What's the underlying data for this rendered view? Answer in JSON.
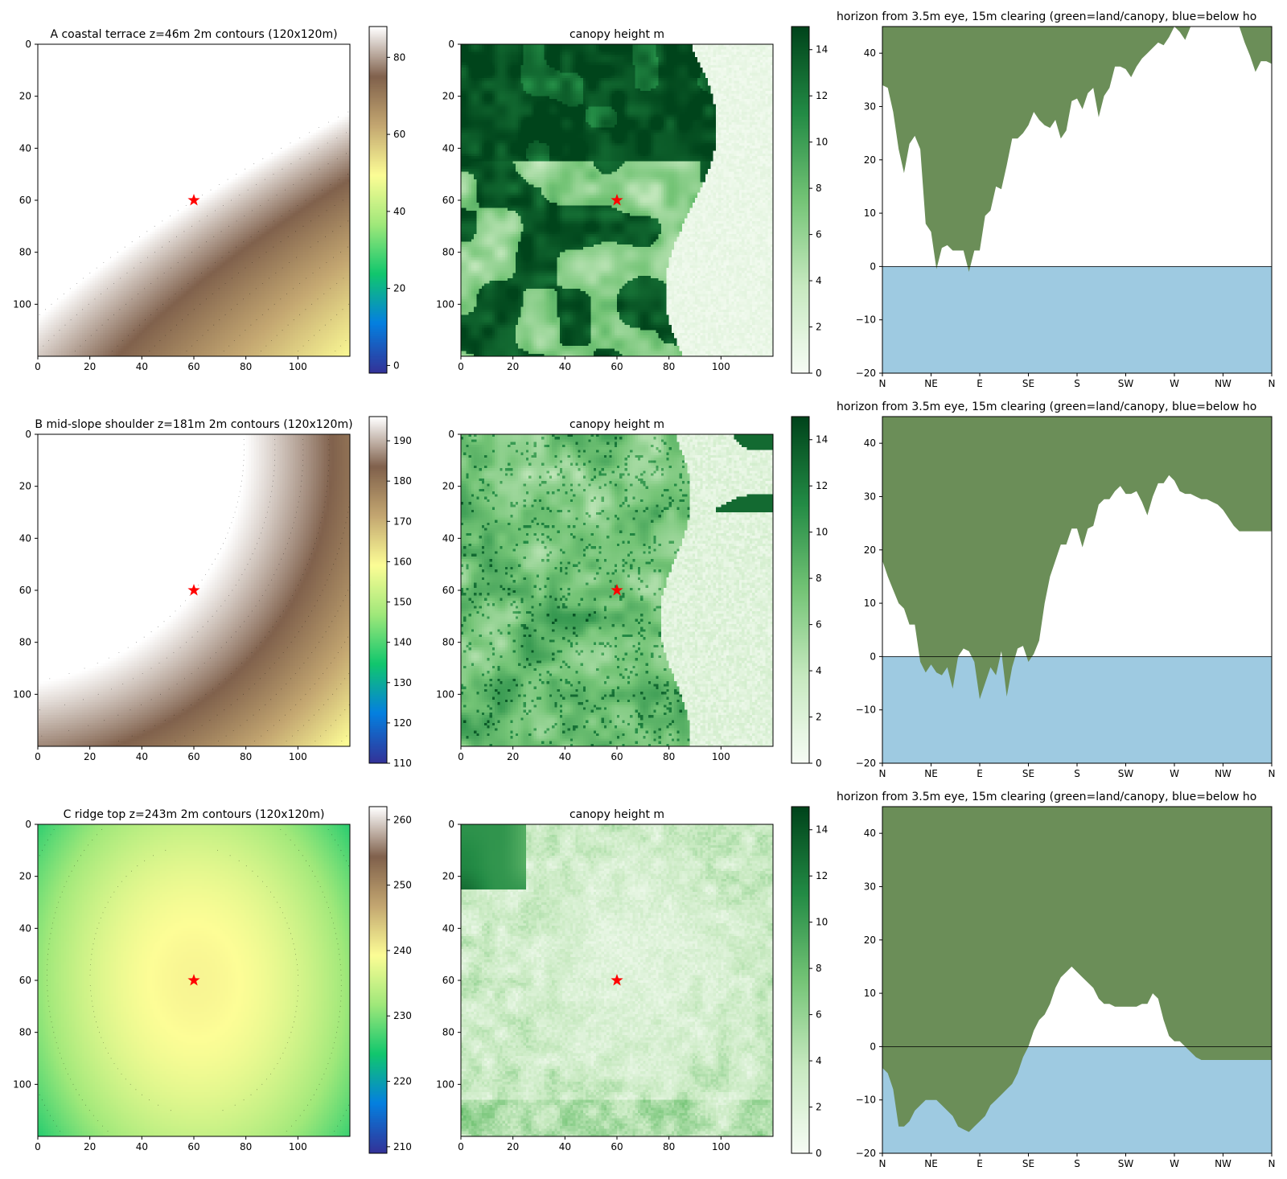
{
  "colors": {
    "land": "#6b8e58",
    "below": "#9ecae1",
    "star": "#ff0000",
    "terrain": [
      "#333399",
      "#0480e0",
      "#11c76d",
      "#a0e87a",
      "#fdfd96",
      "#c4a771",
      "#80614c",
      "#ffffff"
    ],
    "greens": [
      "#f7fcf5",
      "#c7e9c0",
      "#74c476",
      "#238b45",
      "#00441b"
    ]
  },
  "chart_data": [
    {
      "type": "heatmap",
      "row": 0,
      "panel": "elevation",
      "title": "A coastal terrace  z=46m  2m contours (120x120m)",
      "xticks": [
        "0",
        "20",
        "40",
        "60",
        "80",
        "100"
      ],
      "yticks": [
        "0",
        "20",
        "40",
        "60",
        "80",
        "100"
      ],
      "extent": [
        0,
        120
      ],
      "marker": {
        "x": 60,
        "y": 60
      },
      "colorbar": {
        "min": -2,
        "max": 88,
        "ticks": [
          "0",
          "20",
          "40",
          "60",
          "80"
        ]
      },
      "surface": {
        "a": 88,
        "b": -0.28,
        "c": -0.44,
        "d": 0,
        "e": 0.0014,
        "f": 0
      }
    },
    {
      "type": "heatmap",
      "row": 0,
      "panel": "canopy",
      "title": "canopy height m",
      "xticks": [
        "0",
        "20",
        "40",
        "60",
        "80",
        "100"
      ],
      "yticks": [
        "0",
        "20",
        "40",
        "60",
        "80",
        "100"
      ],
      "extent": [
        0,
        120
      ],
      "marker": {
        "x": 60,
        "y": 60
      },
      "colorbar": {
        "min": 0,
        "max": 15,
        "ticks": [
          "0",
          "2",
          "4",
          "6",
          "8",
          "10",
          "12",
          "14"
        ]
      },
      "canopy_style": "A"
    },
    {
      "type": "area",
      "row": 0,
      "panel": "horizon",
      "title": "horizon from 3.5m eye, 15m clearing (green=land/canopy, blue=below ho",
      "ylim": [
        -20,
        45
      ],
      "yticks": [
        "−20",
        "−10",
        "0",
        "10",
        "20",
        "30",
        "40"
      ],
      "xticks": [
        "N",
        "NE",
        "E",
        "SE",
        "S",
        "SW",
        "W",
        "NW",
        "N"
      ],
      "azimuth_deg": [
        0,
        5,
        10,
        15,
        20,
        25,
        30,
        35,
        40,
        45,
        50,
        55,
        60,
        65,
        70,
        75,
        80,
        85,
        90,
        95,
        100,
        105,
        110,
        115,
        120,
        125,
        130,
        135,
        140,
        145,
        150,
        155,
        160,
        165,
        170,
        175,
        180,
        185,
        190,
        195,
        200,
        205,
        210,
        215,
        220,
        225,
        230,
        235,
        240,
        245,
        250,
        255,
        260,
        265,
        270,
        275,
        280,
        285,
        290,
        295,
        300,
        305,
        310,
        315,
        320,
        325,
        330,
        335,
        340,
        345,
        350,
        355,
        360
      ],
      "horizon_deg": [
        34,
        33.5,
        29,
        22,
        17.5,
        23,
        24.5,
        22,
        8,
        6.5,
        -0.5,
        3.5,
        4,
        3,
        3,
        3,
        -1,
        3,
        3,
        9.5,
        10.5,
        15,
        14.5,
        19,
        24,
        24,
        25,
        26.5,
        29,
        27.5,
        26.5,
        26,
        27.5,
        24,
        25.5,
        31,
        31.5,
        29.5,
        32.5,
        33.5,
        28,
        32,
        33.5,
        37.5,
        37.5,
        37,
        35.5,
        37.5,
        39,
        40,
        41,
        42,
        41.5,
        43,
        45,
        44,
        42.5,
        45,
        45,
        45,
        45,
        45,
        45,
        45,
        45,
        45,
        45,
        42,
        39.5,
        36.5,
        38.5,
        38.5,
        38
      ]
    },
    {
      "type": "heatmap",
      "row": 1,
      "panel": "elevation",
      "title": "B mid-slope shoulder  z=181m  2m contours (120x120m)",
      "xticks": [
        "0",
        "20",
        "40",
        "60",
        "80",
        "100"
      ],
      "yticks": [
        "0",
        "20",
        "40",
        "60",
        "80",
        "100"
      ],
      "extent": [
        0,
        120
      ],
      "marker": {
        "x": 60,
        "y": 60
      },
      "colorbar": {
        "min": 110,
        "max": 196,
        "ticks": [
          "110",
          "120",
          "130",
          "140",
          "150",
          "160",
          "170",
          "180",
          "190"
        ]
      },
      "surface": {
        "a": 196,
        "b": -0.25,
        "c": -0.2,
        "d": -0.0015,
        "e": -0.0018,
        "f": 0.0002
      }
    },
    {
      "type": "heatmap",
      "row": 1,
      "panel": "canopy",
      "title": "canopy height m",
      "xticks": [
        "0",
        "20",
        "40",
        "60",
        "80",
        "100"
      ],
      "yticks": [
        "0",
        "20",
        "40",
        "60",
        "80",
        "100"
      ],
      "extent": [
        0,
        120
      ],
      "marker": {
        "x": 60,
        "y": 60
      },
      "colorbar": {
        "min": 0,
        "max": 15,
        "ticks": [
          "0",
          "2",
          "4",
          "6",
          "8",
          "10",
          "12",
          "14"
        ]
      },
      "canopy_style": "B"
    },
    {
      "type": "area",
      "row": 1,
      "panel": "horizon",
      "title": "horizon from 3.5m eye, 15m clearing (green=land/canopy, blue=below ho",
      "ylim": [
        -20,
        45
      ],
      "yticks": [
        "−20",
        "−10",
        "0",
        "10",
        "20",
        "30",
        "40"
      ],
      "xticks": [
        "N",
        "NE",
        "E",
        "SE",
        "S",
        "SW",
        "W",
        "NW",
        "N"
      ],
      "azimuth_deg": [
        0,
        5,
        10,
        15,
        20,
        25,
        30,
        35,
        40,
        45,
        50,
        55,
        60,
        65,
        70,
        75,
        80,
        85,
        90,
        95,
        100,
        105,
        110,
        115,
        120,
        125,
        130,
        135,
        140,
        145,
        150,
        155,
        160,
        165,
        170,
        175,
        180,
        185,
        190,
        195,
        200,
        205,
        210,
        215,
        220,
        225,
        230,
        235,
        240,
        245,
        250,
        255,
        260,
        265,
        270,
        275,
        280,
        285,
        290,
        295,
        300,
        305,
        310,
        315,
        320,
        325,
        330,
        335,
        340,
        345,
        350,
        355,
        360
      ],
      "horizon_deg": [
        18,
        15,
        12.5,
        10,
        9,
        6,
        6,
        -1,
        -3,
        -1.5,
        -3,
        -3.5,
        -2,
        -6,
        0,
        1.5,
        1,
        -1,
        -8,
        -5,
        -2,
        -3.5,
        1,
        -7.5,
        -2,
        1.5,
        2,
        -1,
        0.5,
        3,
        10,
        15,
        18,
        21,
        21,
        24,
        24,
        20.5,
        24,
        24.5,
        28.5,
        29.5,
        29.5,
        31,
        32,
        30.5,
        30.5,
        31,
        29,
        26.5,
        30,
        32.5,
        32.5,
        34,
        33,
        31,
        30.5,
        30.5,
        30,
        29.5,
        29.5,
        29,
        28.5,
        27.5,
        26,
        24.5,
        23.5,
        23.5,
        23.5,
        23.5,
        23.5,
        23.5,
        23.5
      ]
    },
    {
      "type": "heatmap",
      "row": 2,
      "panel": "elevation",
      "title": "C ridge top  z=243m  2m contours (120x120m)",
      "xticks": [
        "0",
        "20",
        "40",
        "60",
        "80",
        "100"
      ],
      "yticks": [
        "0",
        "20",
        "40",
        "60",
        "80",
        "100"
      ],
      "extent": [
        0,
        120
      ],
      "marker": {
        "x": 60,
        "y": 60
      },
      "colorbar": {
        "min": 209,
        "max": 262,
        "ticks": [
          "210",
          "220",
          "230",
          "240",
          "250",
          "260"
        ]
      },
      "surface": {
        "a": 240,
        "b": 0.0,
        "c": 0.0,
        "d": -0.0025,
        "e": -0.0015,
        "f": 0.0001
      }
    },
    {
      "type": "heatmap",
      "row": 2,
      "panel": "canopy",
      "title": "canopy height m",
      "xticks": [
        "0",
        "20",
        "40",
        "60",
        "80",
        "100"
      ],
      "yticks": [
        "0",
        "20",
        "40",
        "60",
        "80",
        "100"
      ],
      "extent": [
        0,
        120
      ],
      "marker": {
        "x": 60,
        "y": 60
      },
      "colorbar": {
        "min": 0,
        "max": 15,
        "ticks": [
          "0",
          "2",
          "4",
          "6",
          "8",
          "10",
          "12",
          "14"
        ]
      },
      "canopy_style": "C"
    },
    {
      "type": "area",
      "row": 2,
      "panel": "horizon",
      "title": "horizon from 3.5m eye, 15m clearing (green=land/canopy, blue=below ho",
      "ylim": [
        -20,
        45
      ],
      "yticks": [
        "−20",
        "−10",
        "0",
        "10",
        "20",
        "30",
        "40"
      ],
      "xticks": [
        "N",
        "NE",
        "E",
        "SE",
        "S",
        "SW",
        "W",
        "NW",
        "N"
      ],
      "azimuth_deg": [
        0,
        5,
        10,
        15,
        20,
        25,
        30,
        35,
        40,
        45,
        50,
        55,
        60,
        65,
        70,
        75,
        80,
        85,
        90,
        95,
        100,
        105,
        110,
        115,
        120,
        125,
        130,
        135,
        140,
        145,
        150,
        155,
        160,
        165,
        170,
        175,
        180,
        185,
        190,
        195,
        200,
        205,
        210,
        215,
        220,
        225,
        230,
        235,
        240,
        245,
        250,
        255,
        260,
        265,
        270,
        275,
        280,
        285,
        290,
        295,
        300,
        305,
        310,
        315,
        320,
        325,
        330,
        335,
        340,
        345,
        350,
        355,
        360
      ],
      "horizon_deg": [
        -4,
        -5,
        -8,
        -15,
        -15,
        -14,
        -12,
        -11,
        -10,
        -10,
        -10,
        -11,
        -12,
        -13,
        -15,
        -15.5,
        -16,
        -15,
        -14,
        -13,
        -11,
        -10,
        -9,
        -8,
        -7,
        -5,
        -2,
        0,
        3,
        5,
        6,
        8,
        11,
        13,
        14,
        15,
        14,
        13,
        12,
        11,
        9,
        8,
        8,
        7.5,
        7.5,
        7.5,
        7.5,
        7.5,
        8,
        8,
        10,
        9,
        5,
        2,
        1,
        1,
        0,
        -1,
        -2,
        -2.5,
        -2.5,
        -2.5,
        -2.5,
        -2.5,
        -2.5,
        -2.5,
        -2.5,
        -2.5,
        -2.5,
        -2.5,
        -2.5,
        -2.5,
        -2.5
      ]
    }
  ]
}
